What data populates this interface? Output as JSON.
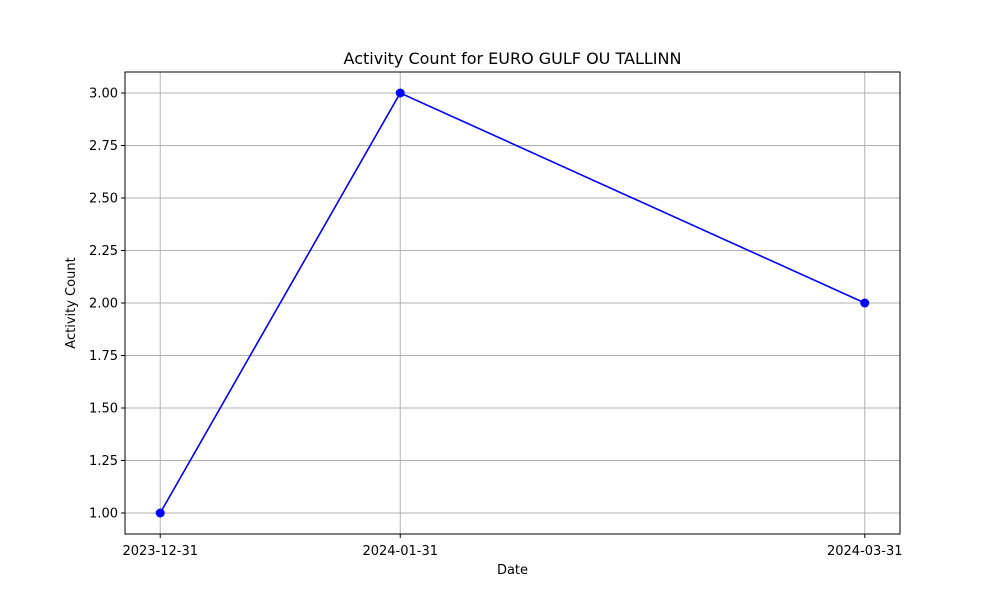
{
  "chart_data": {
    "type": "line",
    "title": "Activity Count for EURO GULF OU TALLINN",
    "xlabel": "Date",
    "ylabel": "Activity Count",
    "x": [
      "2023-12-31",
      "2024-01-31",
      "2024-03-31"
    ],
    "series": [
      {
        "values": [
          1,
          3,
          2
        ],
        "color": "#0000ff",
        "marker": "circle"
      }
    ],
    "ylim": [
      0.9,
      3.1
    ],
    "yticks": [
      1.0,
      1.25,
      1.5,
      1.75,
      2.0,
      2.25,
      2.5,
      2.75,
      3.0
    ],
    "ytick_labels": [
      "1.00",
      "1.25",
      "1.50",
      "1.75",
      "2.00",
      "2.25",
      "2.50",
      "2.75",
      "3.00"
    ],
    "xtick_labels": [
      "2023-12-31",
      "2024-01-31",
      "2024-03-31"
    ],
    "grid": true,
    "grid_color": "#b0b0b0"
  }
}
